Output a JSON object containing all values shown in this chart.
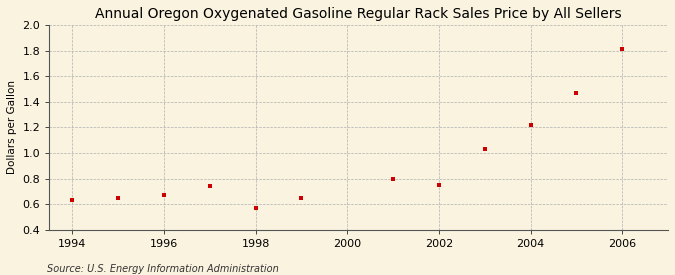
{
  "title": "Annual Oregon Oxygenated Gasoline Regular Rack Sales Price by All Sellers",
  "ylabel": "Dollars per Gallon",
  "source": "Source: U.S. Energy Information Administration",
  "background_color": "#faf3e0",
  "plot_bg_color": "#faf3e0",
  "x_data": [
    1994,
    1995,
    1996,
    1997,
    1998,
    1999,
    2001,
    2002,
    2003,
    2004,
    2005,
    2006
  ],
  "y_data": [
    0.63,
    0.65,
    0.67,
    0.74,
    0.57,
    0.65,
    0.8,
    0.75,
    1.03,
    1.22,
    1.47,
    1.81
  ],
  "marker_color": "#cc0000",
  "marker": "s",
  "marker_size": 3.5,
  "xlim": [
    1993.5,
    2007.0
  ],
  "ylim": [
    0.4,
    2.0
  ],
  "xticks": [
    1994,
    1996,
    1998,
    2000,
    2002,
    2004,
    2006
  ],
  "yticks": [
    0.4,
    0.6,
    0.8,
    1.0,
    1.2,
    1.4,
    1.6,
    1.8,
    2.0
  ],
  "grid_color": "#b0b0b0",
  "grid_style": "--",
  "grid_linewidth": 0.5,
  "title_fontsize": 10,
  "title_fontweight": "normal",
  "label_fontsize": 7.5,
  "tick_fontsize": 8,
  "source_fontsize": 7
}
